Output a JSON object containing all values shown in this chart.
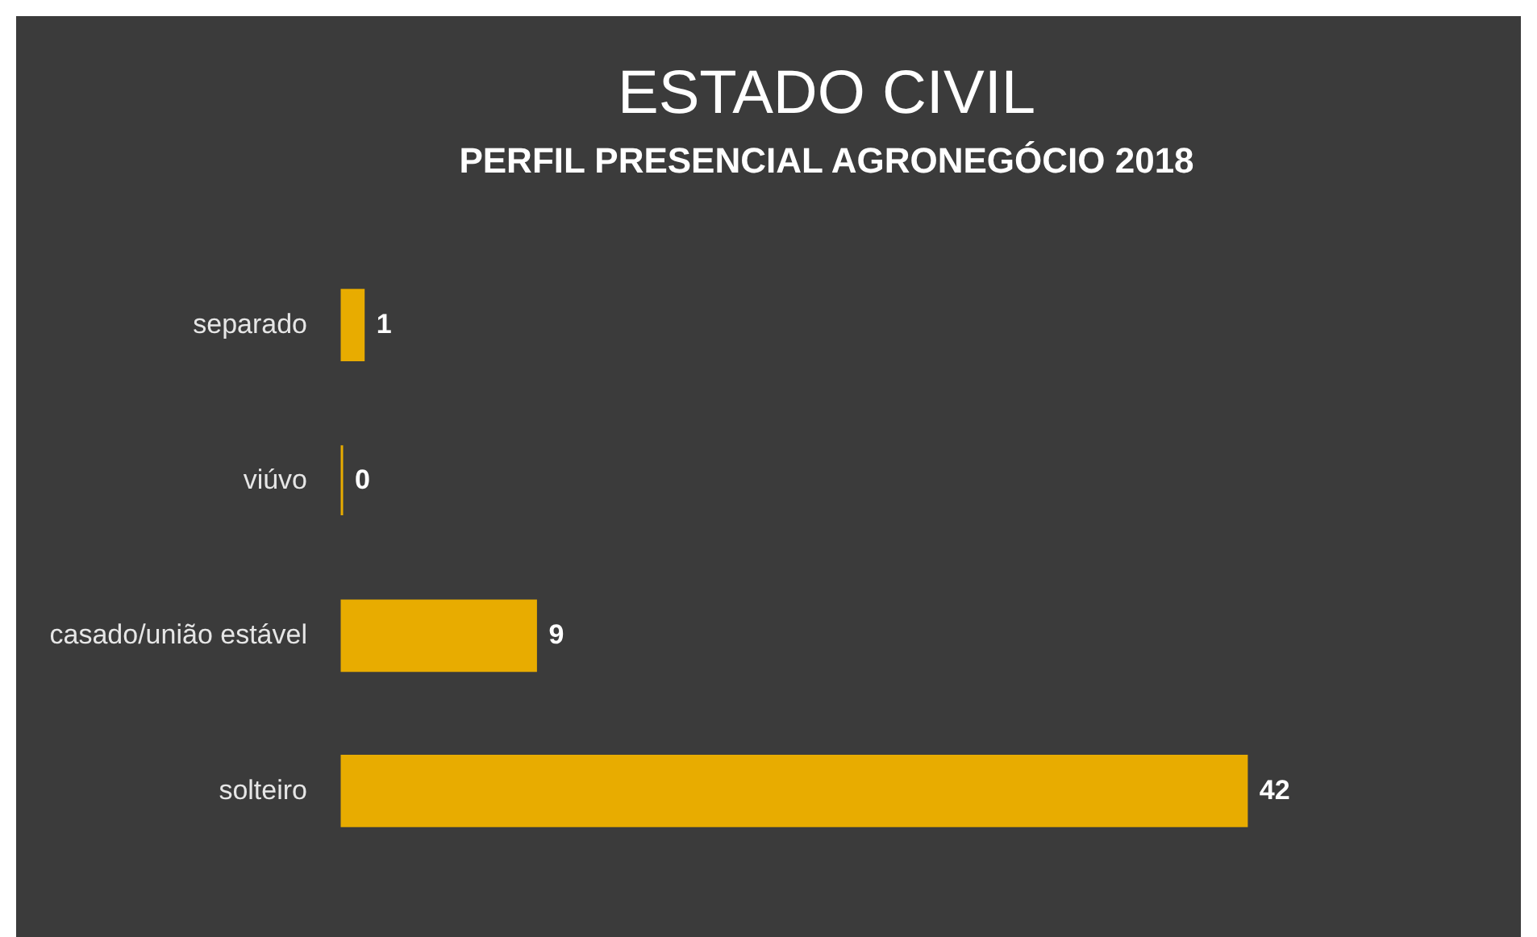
{
  "chart_data": {
    "type": "bar",
    "orientation": "horizontal",
    "title": "ESTADO CIVIL",
    "subtitle": "PERFIL PRESENCIAL AGRONEGÓCIO 2018",
    "categories": [
      "separado",
      "viúvo",
      "casado/união estável",
      "solteiro"
    ],
    "values": [
      1,
      0,
      9,
      42
    ],
    "color": "#e8ac00",
    "data_labels": true,
    "grid": false
  }
}
